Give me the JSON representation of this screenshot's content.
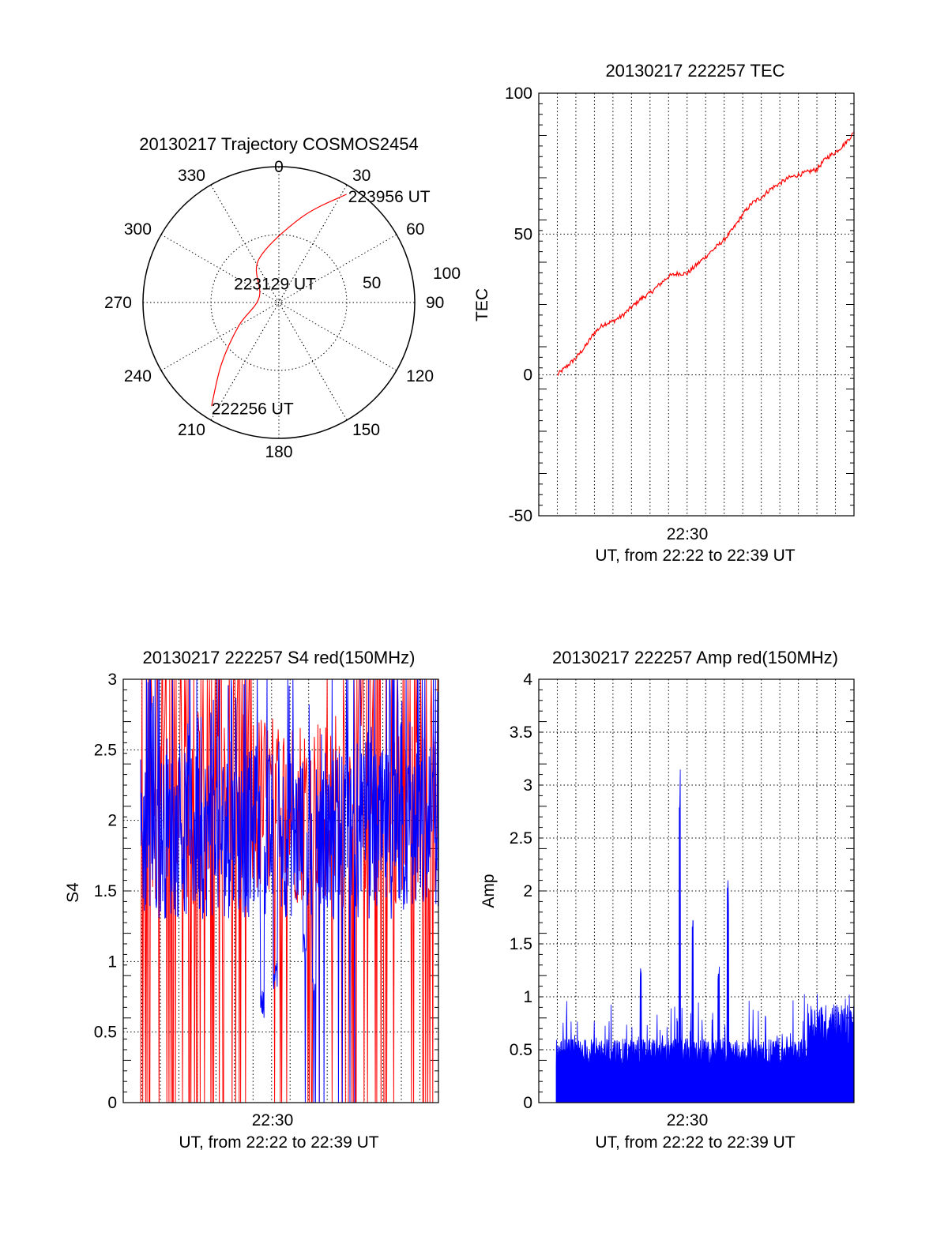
{
  "colors": {
    "red": "#ff0000",
    "blue": "#0000ff",
    "axis": "#000000"
  },
  "chart_data": [
    {
      "id": "trajectory",
      "type": "polar",
      "title": "20130217 Trajectory COSMOS2454",
      "angle_labels": [
        "0",
        "30",
        "60",
        "90",
        "120",
        "150",
        "180",
        "210",
        "240",
        "270",
        "300",
        "330"
      ],
      "radius_labels": [
        "50",
        "100"
      ],
      "rlim": [
        0,
        100
      ],
      "grid": true,
      "series": [
        {
          "color": "#ff0000",
          "points": [
            {
              "az": 213,
              "r": 91
            },
            {
              "az": 223,
              "r": 62
            },
            {
              "az": 240,
              "r": 34
            },
            {
              "az": 285,
              "r": 15
            },
            {
              "az": 335,
              "r": 35
            },
            {
              "az": 15,
              "r": 65
            },
            {
              "az": 32,
              "r": 94
            }
          ]
        }
      ],
      "annotations": [
        {
          "text": "223956 UT",
          "az": 32,
          "r": 94
        },
        {
          "text": "223129 UT",
          "az": 285,
          "r": 15
        },
        {
          "text": "222256 UT",
          "az": 213,
          "r": 91
        }
      ]
    },
    {
      "id": "tec",
      "type": "line",
      "title": "20130217 222257 TEC",
      "ylabel": "TEC",
      "xlabel": "UT, from 22:22 to 22:39 UT",
      "xtick_label": "22:30",
      "ylim": [
        -50,
        100
      ],
      "yticks": [
        -50,
        0,
        50,
        100
      ],
      "xlim": [
        0,
        17
      ],
      "grid": true,
      "series": [
        {
          "color": "#ff0000",
          "x": [
            1,
            1.5,
            2,
            2.5,
            3,
            3.5,
            4,
            4.5,
            5,
            5.5,
            6,
            6.5,
            7,
            7.5,
            8,
            8.5,
            9,
            9.5,
            10,
            10.5,
            11,
            11.5,
            12,
            12.5,
            13,
            13.5,
            14,
            14.5,
            15,
            15.5,
            16,
            16.5,
            17
          ],
          "y": [
            0,
            3,
            6,
            10,
            15,
            18,
            19,
            21,
            24,
            27,
            29,
            32,
            35,
            36,
            36,
            39,
            42,
            45,
            48,
            52,
            57,
            61,
            63,
            66,
            68,
            70,
            71,
            72,
            73,
            77,
            79,
            82,
            86
          ]
        }
      ]
    },
    {
      "id": "s4",
      "type": "line",
      "title": "20130217 222257 S4 red(150MHz)",
      "ylabel": "S4",
      "xlabel": "UT, from 22:22 to 22:39 UT",
      "xtick_label": "22:30",
      "ylim": [
        0,
        3
      ],
      "yticks": [
        "0",
        "0.5",
        "1",
        "1.5",
        "2",
        "2.5",
        "3"
      ],
      "xlim": [
        0,
        17
      ],
      "grid": true,
      "series": [
        {
          "color": "#ff0000",
          "baseline": 1.8,
          "noise": 1.6,
          "note_dropouts": true
        },
        {
          "color": "#0000ff",
          "baseline": 1.9,
          "noise": 0.6
        }
      ],
      "dips": [
        {
          "x": 7.5,
          "y": 0.6
        },
        {
          "x": 8.2,
          "y": 0.8
        },
        {
          "x": 9.8,
          "y": 1.0
        },
        {
          "x": 10.3,
          "y": 0.7
        }
      ]
    },
    {
      "id": "amp",
      "type": "area",
      "title": "20130217 222257 Amp red(150MHz)",
      "ylabel": "Amp",
      "xlabel": "UT, from 22:22 to 22:39 UT",
      "xtick_label": "22:30",
      "ylim": [
        0,
        4
      ],
      "yticks": [
        "0",
        "0.5",
        "1",
        "1.5",
        "2",
        "2.5",
        "3",
        "3.5",
        "4"
      ],
      "xlim": [
        0,
        17
      ],
      "grid": true,
      "series": [
        {
          "color": "#0000ff",
          "baseline_segments": [
            {
              "x0": 0,
              "x1": 14.5,
              "level": 0.55
            },
            {
              "x0": 14.5,
              "x1": 17,
              "level": 0.85
            }
          ],
          "peaks": [
            {
              "x": 5.5,
              "y": 1.35
            },
            {
              "x": 7.6,
              "y": 3.15
            },
            {
              "x": 8.3,
              "y": 1.75
            },
            {
              "x": 9.7,
              "y": 1.3
            },
            {
              "x": 10.2,
              "y": 2.15
            }
          ]
        }
      ]
    }
  ]
}
